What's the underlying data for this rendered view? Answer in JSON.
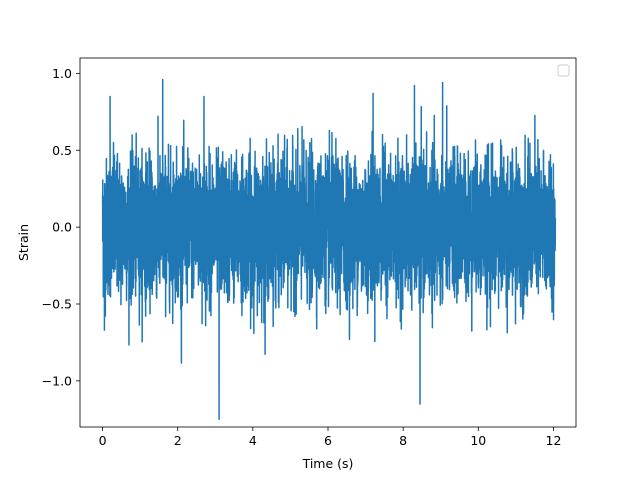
{
  "chart_data": {
    "type": "line",
    "title": "",
    "xlabel": "Time (s)",
    "ylabel": "Strain",
    "xlim": [
      -0.6,
      12.6
    ],
    "ylim": [
      -1.3,
      1.1
    ],
    "x_ticks": [
      0,
      2,
      4,
      6,
      8,
      10,
      12
    ],
    "x_tick_labels": [
      "0",
      "2",
      "4",
      "6",
      "8",
      "10",
      "12"
    ],
    "y_ticks": [
      -1.0,
      -0.5,
      0.0,
      0.5,
      1.0
    ],
    "y_tick_labels": [
      "−1.0",
      "−0.5",
      "0.0",
      "0.5",
      "1.0"
    ],
    "grid": false,
    "legend": {
      "placement": "top-right",
      "entries": []
    },
    "series": [
      {
        "color": "#1f77b4",
        "x_start": 0,
        "x_end": 12.05,
        "amplitude_std": 0.22,
        "notable_points": [
          {
            "x": 3.1,
            "y": -1.25
          },
          {
            "x": 8.45,
            "y": -1.15
          },
          {
            "x": 1.6,
            "y": 0.96
          },
          {
            "x": 9.05,
            "y": 0.94
          },
          {
            "x": 8.3,
            "y": 0.92
          },
          {
            "x": 7.2,
            "y": 0.87
          },
          {
            "x": 0.2,
            "y": 0.85
          },
          {
            "x": 2.7,
            "y": 0.85
          },
          {
            "x": 0.05,
            "y": -0.67
          },
          {
            "x": 12.0,
            "y": 0.44
          },
          {
            "x": 12.0,
            "y": -0.33
          }
        ]
      }
    ]
  }
}
